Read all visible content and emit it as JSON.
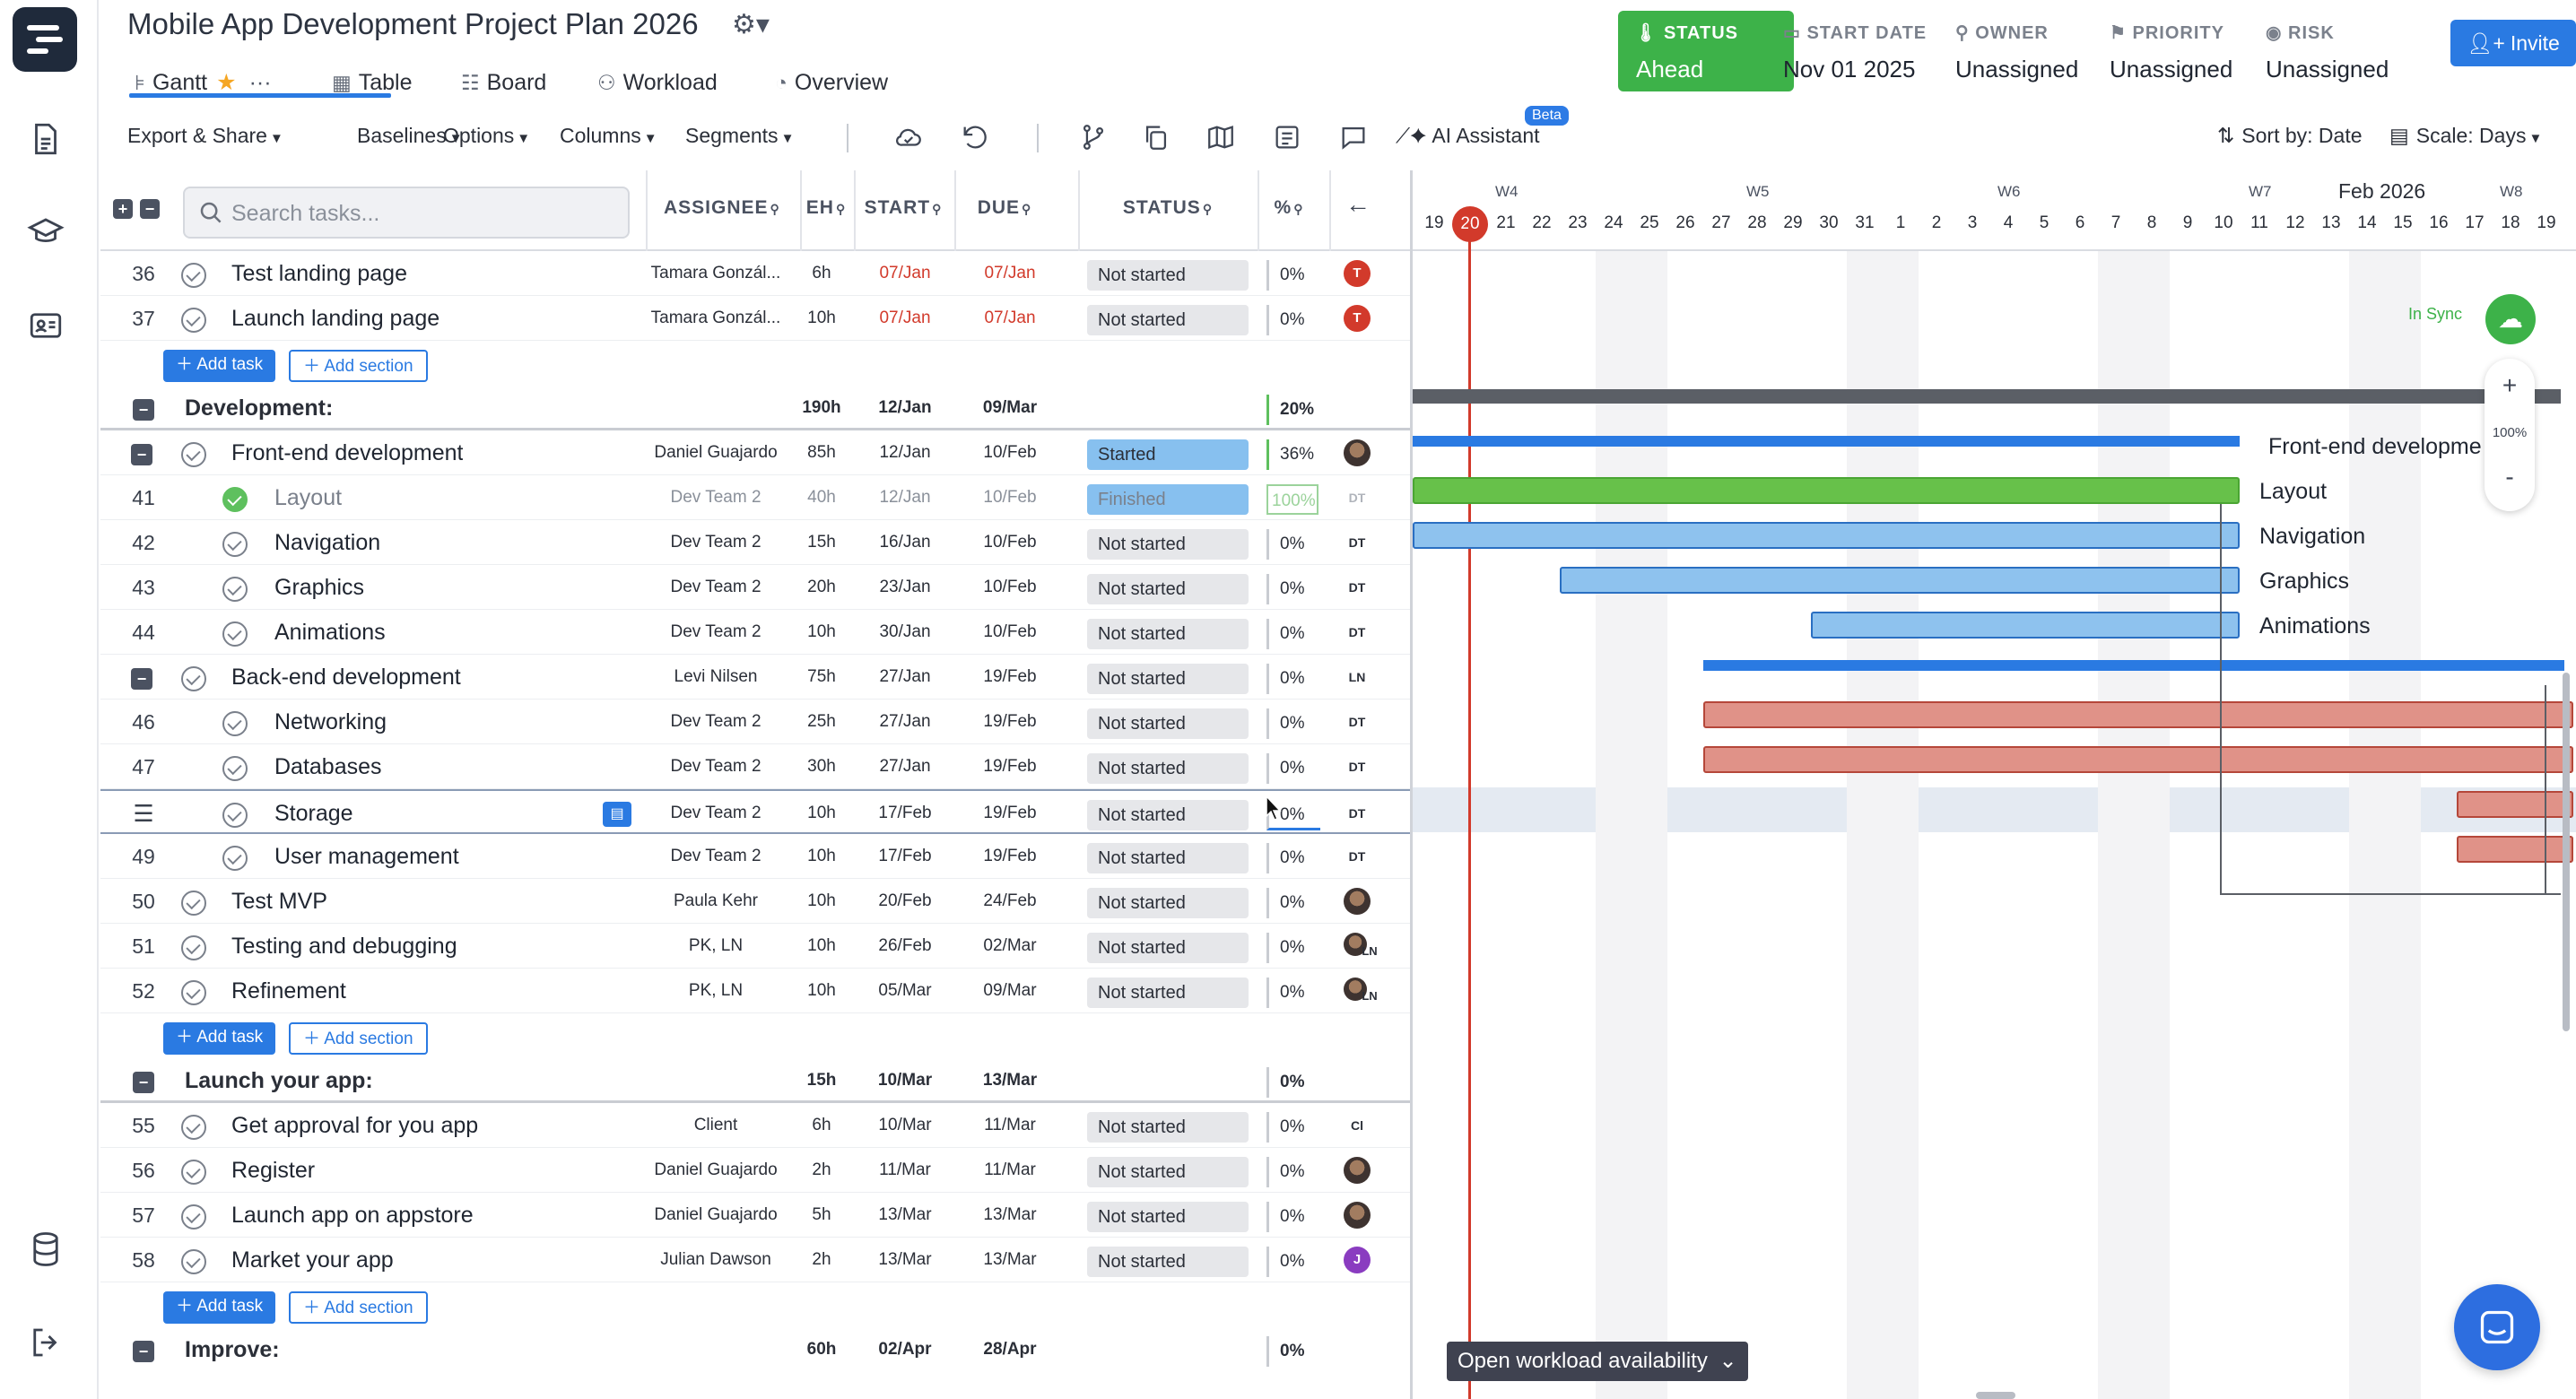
{
  "project": {
    "title": "Mobile App Development Project Plan 2026"
  },
  "view_tabs": [
    {
      "label": "Gantt"
    },
    {
      "label": "Table"
    },
    {
      "label": "Board"
    },
    {
      "label": "Workload"
    },
    {
      "label": "Overview"
    }
  ],
  "toolbar": {
    "export_share": "Export & Share",
    "baselines": "Baselines",
    "options": "Options",
    "columns": "Columns",
    "segments": "Segments",
    "ai_assistant": "AI Assistant",
    "beta": "Beta",
    "sort_by": "Sort by: Date",
    "scale": "Scale: Days"
  },
  "meta": {
    "status_label": "STATUS",
    "status_value": "Ahead",
    "start_date_label": "START DATE",
    "start_date_value": "Nov 01 2025",
    "owner_label": "OWNER",
    "owner_value": "Unassigned",
    "priority_label": "PRIORITY",
    "priority_value": "Unassigned",
    "risk_label": "RISK",
    "risk_value": "Unassigned",
    "invite_label": "Invite",
    "status_color": "#3db249"
  },
  "grid": {
    "search_placeholder": "Search tasks...",
    "columns": {
      "assignee": "ASSIGNEE",
      "eh": "EH",
      "start": "START",
      "due": "DUE",
      "status": "STATUS",
      "pct": "%"
    }
  },
  "rows": [
    {
      "kind": "task",
      "num": "36",
      "name": "Test landing page",
      "assignee": "Tamara Gonzál...",
      "eh": "6h",
      "start": "07/Jan",
      "due": "07/Jan",
      "status": "Not started",
      "pct": "0%",
      "avatar": "T"
    },
    {
      "kind": "task",
      "num": "37",
      "name": "Launch landing page",
      "assignee": "Tamara Gonzál...",
      "eh": "10h",
      "start": "07/Jan",
      "due": "07/Jan",
      "status": "Not started",
      "pct": "0%",
      "avatar": "T"
    },
    {
      "kind": "add",
      "add_task": "Add task",
      "add_section": "Add section"
    },
    {
      "kind": "section",
      "name": "Development:",
      "eh": "190h",
      "start": "12/Jan",
      "due": "09/Mar",
      "pct": "20%"
    },
    {
      "kind": "task",
      "num": "",
      "name": "Front-end development",
      "assignee": "Daniel Guajardo",
      "eh": "85h",
      "start": "12/Jan",
      "due": "10/Feb",
      "status": "Started",
      "pct": "36%",
      "avatar": ""
    },
    {
      "kind": "task",
      "num": "41",
      "name": "Layout",
      "assignee": "Dev Team 2",
      "eh": "40h",
      "start": "12/Jan",
      "due": "10/Feb",
      "status": "Finished",
      "pct": "100%",
      "avatar": "DT"
    },
    {
      "kind": "task",
      "num": "42",
      "name": "Navigation",
      "assignee": "Dev Team 2",
      "eh": "15h",
      "start": "16/Jan",
      "due": "10/Feb",
      "status": "Not started",
      "pct": "0%",
      "avatar": "DT"
    },
    {
      "kind": "task",
      "num": "43",
      "name": "Graphics",
      "assignee": "Dev Team 2",
      "eh": "20h",
      "start": "23/Jan",
      "due": "10/Feb",
      "status": "Not started",
      "pct": "0%",
      "avatar": "DT"
    },
    {
      "kind": "task",
      "num": "44",
      "name": "Animations",
      "assignee": "Dev Team 2",
      "eh": "10h",
      "start": "30/Jan",
      "due": "10/Feb",
      "status": "Not started",
      "pct": "0%",
      "avatar": "DT"
    },
    {
      "kind": "task",
      "num": "",
      "name": "Back-end development",
      "assignee": "Levi Nilsen",
      "eh": "75h",
      "start": "27/Jan",
      "due": "19/Feb",
      "status": "Not started",
      "pct": "0%",
      "avatar": "LN"
    },
    {
      "kind": "task",
      "num": "46",
      "name": "Networking",
      "assignee": "Dev Team 2",
      "eh": "25h",
      "start": "27/Jan",
      "due": "19/Feb",
      "status": "Not started",
      "pct": "0%",
      "avatar": "DT"
    },
    {
      "kind": "task",
      "num": "47",
      "name": "Databases",
      "assignee": "Dev Team 2",
      "eh": "30h",
      "start": "27/Jan",
      "due": "19/Feb",
      "status": "Not started",
      "pct": "0%",
      "avatar": "DT"
    },
    {
      "kind": "task",
      "num": "",
      "name": "Storage",
      "assignee": "Dev Team 2",
      "eh": "10h",
      "start": "17/Feb",
      "due": "19/Feb",
      "status": "Not started",
      "pct": "0%",
      "avatar": "DT"
    },
    {
      "kind": "task",
      "num": "49",
      "name": "User management",
      "assignee": "Dev Team 2",
      "eh": "10h",
      "start": "17/Feb",
      "due": "19/Feb",
      "status": "Not started",
      "pct": "0%",
      "avatar": "DT"
    },
    {
      "kind": "task",
      "num": "50",
      "name": "Test MVP",
      "assignee": "Paula Kehr",
      "eh": "10h",
      "start": "20/Feb",
      "due": "24/Feb",
      "status": "Not started",
      "pct": "0%",
      "avatar": ""
    },
    {
      "kind": "task",
      "num": "51",
      "name": "Testing and debugging",
      "assignee": "PK, LN",
      "eh": "10h",
      "start": "26/Feb",
      "due": "02/Mar",
      "status": "Not started",
      "pct": "0%",
      "avatar": "LN"
    },
    {
      "kind": "task",
      "num": "52",
      "name": "Refinement",
      "assignee": "PK, LN",
      "eh": "10h",
      "start": "05/Mar",
      "due": "09/Mar",
      "status": "Not started",
      "pct": "0%",
      "avatar": "LN"
    },
    {
      "kind": "add",
      "add_task": "Add task",
      "add_section": "Add section"
    },
    {
      "kind": "section",
      "name": "Launch your app:",
      "eh": "15h",
      "start": "10/Mar",
      "due": "13/Mar",
      "pct": "0%"
    },
    {
      "kind": "task",
      "num": "55",
      "name": "Get approval for you app",
      "assignee": "Client",
      "eh": "6h",
      "start": "10/Mar",
      "due": "11/Mar",
      "status": "Not started",
      "pct": "0%",
      "avatar": "Cl"
    },
    {
      "kind": "task",
      "num": "56",
      "name": "Register",
      "assignee": "Daniel Guajardo",
      "eh": "2h",
      "start": "11/Mar",
      "due": "11/Mar",
      "status": "Not started",
      "pct": "0%",
      "avatar": ""
    },
    {
      "kind": "task",
      "num": "57",
      "name": "Launch app on appstore",
      "assignee": "Daniel Guajardo",
      "eh": "5h",
      "start": "13/Mar",
      "due": "13/Mar",
      "status": "Not started",
      "pct": "0%",
      "avatar": ""
    },
    {
      "kind": "task",
      "num": "58",
      "name": "Market your app",
      "assignee": "Julian Dawson",
      "eh": "2h",
      "start": "13/Mar",
      "due": "13/Mar",
      "status": "Not started",
      "pct": "0%",
      "avatar": "J"
    },
    {
      "kind": "add",
      "add_task": "Add task",
      "add_section": "Add section"
    },
    {
      "kind": "section",
      "name": "Improve:",
      "eh": "60h",
      "start": "02/Apr",
      "due": "28/Apr",
      "pct": "0%"
    }
  ],
  "timeline": {
    "month": "Feb 2026",
    "weeks": [
      "W4",
      "W5",
      "W6",
      "W7",
      "W8"
    ],
    "days": [
      "19",
      "20",
      "21",
      "22",
      "23",
      "24",
      "25",
      "26",
      "27",
      "28",
      "29",
      "30",
      "31",
      "1",
      "2",
      "3",
      "4",
      "5",
      "6",
      "7",
      "8",
      "9",
      "10",
      "11",
      "12",
      "13",
      "14",
      "15",
      "16",
      "17",
      "18",
      "19"
    ],
    "today": "20",
    "bar_labels": {
      "frontend": "Front-end developme",
      "layout": "Layout",
      "navigation": "Navigation",
      "graphics": "Graphics",
      "animations": "Animations"
    },
    "sync_label": "In Sync",
    "zoom_level": "100%",
    "open_workload": "Open workload availability"
  }
}
